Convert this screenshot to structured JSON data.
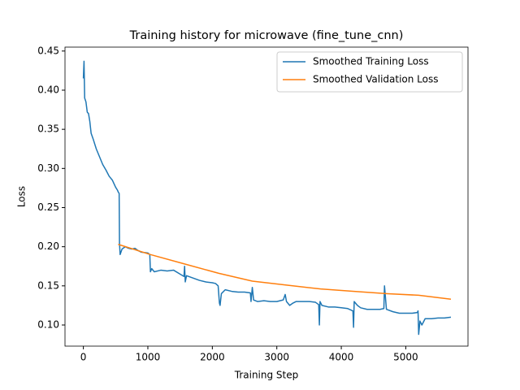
{
  "chart_data": {
    "type": "line",
    "title": "Training history for microwave (fine_tune_cnn)",
    "xlabel": "Training Step",
    "ylabel": "Loss",
    "xlim": [
      -285,
      5965
    ],
    "ylim": [
      0.073,
      0.455
    ],
    "xticks": [
      0,
      1000,
      2000,
      3000,
      4000,
      5000
    ],
    "yticks": [
      {
        "value": 0.1,
        "label": "0.10"
      },
      0.15,
      {
        "value": 0.2,
        "label": "0.20"
      },
      0.25,
      {
        "value": 0.3,
        "label": "0.30"
      },
      0.35,
      {
        "value": 0.4,
        "label": "0.40"
      },
      0.45
    ],
    "grid": false,
    "legend": "upper right",
    "series": [
      {
        "name": "Smoothed Training Loss",
        "color": "#1f77b4",
        "x": [
          0,
          10,
          20,
          40,
          60,
          80,
          100,
          120,
          150,
          200,
          250,
          300,
          350,
          400,
          450,
          500,
          530,
          540,
          555,
          560,
          570,
          600,
          650,
          700,
          750,
          800,
          850,
          900,
          1000,
          1030,
          1040,
          1060,
          1100,
          1200,
          1300,
          1400,
          1500,
          1560,
          1570,
          1580,
          1600,
          1700,
          1800,
          1900,
          2000,
          2050,
          2090,
          2110,
          2120,
          2140,
          2200,
          2300,
          2400,
          2500,
          2590,
          2600,
          2620,
          2640,
          2700,
          2800,
          2900,
          3000,
          3100,
          3130,
          3150,
          3200,
          3250,
          3300,
          3400,
          3500,
          3600,
          3650,
          3660,
          3670,
          3700,
          3800,
          3900,
          4000,
          4100,
          4180,
          4190,
          4200,
          4250,
          4300,
          4400,
          4500,
          4600,
          4660,
          4670,
          4690,
          4700,
          4800,
          4900,
          5000,
          5100,
          5180,
          5190,
          5200,
          5220,
          5250,
          5300,
          5400,
          5500,
          5600,
          5700
        ],
        "values": [
          0.415,
          0.437,
          0.39,
          0.385,
          0.372,
          0.37,
          0.36,
          0.345,
          0.338,
          0.325,
          0.315,
          0.305,
          0.298,
          0.29,
          0.285,
          0.276,
          0.272,
          0.27,
          0.268,
          0.205,
          0.19,
          0.197,
          0.2,
          0.198,
          0.197,
          0.198,
          0.195,
          0.193,
          0.192,
          0.19,
          0.168,
          0.172,
          0.168,
          0.17,
          0.169,
          0.17,
          0.165,
          0.162,
          0.175,
          0.155,
          0.163,
          0.16,
          0.157,
          0.155,
          0.154,
          0.153,
          0.15,
          0.128,
          0.125,
          0.14,
          0.145,
          0.143,
          0.142,
          0.142,
          0.141,
          0.13,
          0.148,
          0.132,
          0.13,
          0.131,
          0.13,
          0.13,
          0.132,
          0.139,
          0.13,
          0.125,
          0.128,
          0.13,
          0.13,
          0.13,
          0.129,
          0.126,
          0.1,
          0.13,
          0.125,
          0.123,
          0.123,
          0.122,
          0.121,
          0.118,
          0.097,
          0.13,
          0.125,
          0.122,
          0.12,
          0.12,
          0.12,
          0.121,
          0.15,
          0.13,
          0.12,
          0.117,
          0.115,
          0.115,
          0.115,
          0.116,
          0.118,
          0.088,
          0.105,
          0.1,
          0.108,
          0.108,
          0.109,
          0.109,
          0.11
        ]
      },
      {
        "name": "Smoothed Validation Loss",
        "color": "#ff7f0e",
        "x": [
          540,
          1040,
          1570,
          2100,
          2620,
          3150,
          3680,
          4200,
          4720,
          5200,
          5700
        ],
        "values": [
          0.203,
          0.19,
          0.178,
          0.166,
          0.156,
          0.151,
          0.146,
          0.143,
          0.14,
          0.138,
          0.133
        ]
      }
    ]
  }
}
